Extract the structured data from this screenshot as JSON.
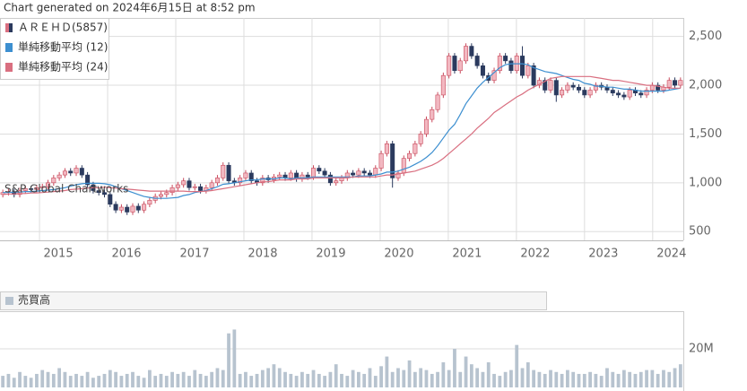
{
  "chart_data": [
    {
      "type": "candlestick",
      "title": "Chart generated on 2024年6月15日 at 8:52 pm",
      "annotation": "S&P Global Chartworks",
      "candles": {
        "name": "ＡＲＥＨＤ(5857)",
        "up_color": "#f2b8c1",
        "up_edge": "#c94a5c",
        "down_color": "#2b3a5e",
        "open": [
          880,
          900,
          910,
          880,
          920,
          940,
          930,
          950,
          960,
          1000,
          1050,
          1080,
          1120,
          1100,
          1150,
          1080,
          980,
          920,
          900,
          880,
          780,
          720,
          750,
          700,
          760,
          720,
          780,
          820,
          860,
          880,
          900,
          950,
          980,
          1020,
          950,
          960,
          920,
          950,
          1000,
          1050,
          1180,
          1020,
          1000,
          1050,
          1100,
          1020,
          1000,
          1050,
          1030,
          1060,
          1080,
          1050,
          1100,
          1040,
          1080,
          1060,
          1150,
          1120,
          1080,
          1000,
          1020,
          1050,
          1100,
          1080,
          1120,
          1100,
          1080,
          1150,
          1300,
          1400,
          1050,
          1100,
          1250,
          1300,
          1400,
          1500,
          1650,
          1750,
          1900,
          2100,
          2300,
          2150,
          2250,
          2400,
          2300,
          2200,
          2100,
          2050,
          2150,
          2300,
          2250,
          2150,
          2300,
          2100,
          2200,
          2000,
          2050,
          1950,
          2050,
          1900,
          1950,
          2000,
          1980,
          1950,
          1900,
          1950,
          2000,
          1980,
          1950,
          1920,
          1900,
          1880,
          1950,
          1920,
          1900,
          1950,
          2000,
          1950,
          1980,
          2050,
          2000
        ],
        "high": [
          930,
          940,
          940,
          950,
          970,
          970,
          980,
          990,
          1030,
          1080,
          1110,
          1150,
          1150,
          1180,
          1180,
          1110,
          1010,
          950,
          930,
          910,
          810,
          780,
          780,
          790,
          790,
          810,
          850,
          890,
          910,
          930,
          980,
          1010,
          1050,
          1050,
          990,
          990,
          980,
          1030,
          1080,
          1210,
          1210,
          1050,
          1080,
          1130,
          1130,
          1050,
          1080,
          1080,
          1090,
          1110,
          1110,
          1130,
          1130,
          1110,
          1110,
          1180,
          1180,
          1150,
          1110,
          1050,
          1080,
          1130,
          1130,
          1150,
          1150,
          1130,
          1180,
          1330,
          1430,
          1430,
          1130,
          1280,
          1330,
          1430,
          1530,
          1680,
          1780,
          1930,
          2130,
          2330,
          2330,
          2280,
          2430,
          2430,
          2330,
          2230,
          2130,
          2180,
          2330,
          2330,
          2280,
          2330,
          2400,
          2230,
          2230,
          2080,
          2080,
          2080,
          2080,
          1980,
          2030,
          2030,
          2010,
          1980,
          1980,
          2030,
          2030,
          2010,
          1980,
          1950,
          1930,
          1980,
          1980,
          1950,
          1980,
          2030,
          2030,
          2010,
          2080,
          2080,
          2080
        ],
        "low": [
          850,
          870,
          850,
          850,
          890,
          900,
          900,
          920,
          930,
          970,
          1020,
          1050,
          1070,
          1070,
          1050,
          950,
          890,
          870,
          850,
          750,
          690,
          690,
          670,
          670,
          690,
          690,
          750,
          790,
          830,
          850,
          870,
          920,
          950,
          920,
          920,
          890,
          890,
          920,
          970,
          1020,
          990,
          970,
          970,
          1020,
          990,
          970,
          970,
          1000,
          1000,
          1030,
          1020,
          1020,
          1010,
          1010,
          1030,
          1030,
          1090,
          1050,
          970,
          970,
          990,
          1020,
          1050,
          1050,
          1070,
          1050,
          1050,
          1120,
          1270,
          950,
          1020,
          1070,
          1220,
          1270,
          1370,
          1470,
          1620,
          1720,
          1870,
          2070,
          2120,
          2120,
          2220,
          2270,
          2170,
          2070,
          2020,
          2020,
          2120,
          2220,
          2120,
          2120,
          2070,
          2070,
          1970,
          1970,
          1920,
          1920,
          1830,
          1870,
          1920,
          1950,
          1920,
          1870,
          1870,
          1920,
          1950,
          1920,
          1890,
          1870,
          1850,
          1850,
          1890,
          1870,
          1870,
          1920,
          1920,
          1920,
          1950,
          1970,
          1970
        ],
        "close": [
          900,
          910,
          880,
          920,
          940,
          930,
          950,
          960,
          1000,
          1050,
          1080,
          1120,
          1100,
          1150,
          1080,
          980,
          920,
          900,
          880,
          780,
          720,
          750,
          700,
          760,
          720,
          780,
          820,
          860,
          880,
          900,
          950,
          980,
          1020,
          950,
          960,
          920,
          950,
          1000,
          1050,
          1180,
          1020,
          1000,
          1050,
          1100,
          1020,
          1000,
          1050,
          1030,
          1060,
          1080,
          1050,
          1100,
          1040,
          1080,
          1060,
          1150,
          1120,
          1080,
          1000,
          1020,
          1050,
          1100,
          1080,
          1120,
          1100,
          1080,
          1150,
          1300,
          1400,
          1050,
          1100,
          1250,
          1300,
          1400,
          1500,
          1650,
          1750,
          1900,
          2100,
          2300,
          2150,
          2250,
          2400,
          2300,
          2200,
          2100,
          2050,
          2150,
          2300,
          2250,
          2150,
          2300,
          2100,
          2200,
          2000,
          2050,
          1950,
          2050,
          1900,
          1950,
          2000,
          1980,
          1950,
          1900,
          1950,
          2000,
          1980,
          1950,
          1920,
          1900,
          1880,
          1950,
          1920,
          1900,
          1950,
          2000,
          1950,
          1980,
          2050,
          2000,
          2050
        ]
      },
      "series": [
        {
          "name": "単純移動平均 (12)",
          "color": "#3d8fd0",
          "values": [
            900,
            900,
            905,
            905,
            910,
            910,
            915,
            920,
            925,
            930,
            940,
            950,
            965,
            980,
            990,
            995,
            995,
            995,
            990,
            980,
            960,
            940,
            920,
            900,
            880,
            860,
            850,
            840,
            840,
            840,
            845,
            850,
            870,
            880,
            900,
            910,
            920,
            940,
            960,
            985,
            990,
            1000,
            1010,
            1020,
            1030,
            1030,
            1040,
            1040,
            1040,
            1050,
            1050,
            1040,
            1050,
            1050,
            1050,
            1060,
            1060,
            1060,
            1060,
            1060,
            1060,
            1060,
            1060,
            1070,
            1070,
            1070,
            1080,
            1090,
            1110,
            1110,
            1120,
            1140,
            1160,
            1190,
            1220,
            1260,
            1310,
            1380,
            1460,
            1540,
            1600,
            1700,
            1810,
            1890,
            1970,
            2030,
            2080,
            2130,
            2180,
            2210,
            2220,
            2220,
            2220,
            2210,
            2180,
            2160,
            2140,
            2130,
            2120,
            2100,
            2080,
            2060,
            2050,
            2020,
            2010,
            1990,
            1990,
            1980,
            1980,
            1970,
            1960,
            1960,
            1950,
            1940,
            1940,
            1940,
            1940,
            1940,
            1950,
            1960,
            1970
          ]
        },
        {
          "name": "単純移動平均 (24)",
          "color": "#d96f80",
          "values": [
            880,
            885,
            885,
            890,
            890,
            895,
            895,
            900,
            905,
            910,
            915,
            920,
            930,
            935,
            940,
            945,
            950,
            950,
            955,
            950,
            945,
            940,
            935,
            930,
            925,
            920,
            915,
            915,
            915,
            915,
            915,
            915,
            915,
            910,
            910,
            910,
            915,
            920,
            930,
            940,
            950,
            960,
            970,
            980,
            990,
            1000,
            1010,
            1010,
            1020,
            1030,
            1030,
            1030,
            1040,
            1040,
            1040,
            1050,
            1050,
            1050,
            1050,
            1050,
            1050,
            1050,
            1060,
            1060,
            1060,
            1060,
            1060,
            1070,
            1080,
            1080,
            1090,
            1100,
            1110,
            1120,
            1140,
            1160,
            1180,
            1210,
            1250,
            1300,
            1350,
            1400,
            1450,
            1500,
            1560,
            1610,
            1660,
            1720,
            1760,
            1800,
            1840,
            1880,
            1910,
            1950,
            1980,
            2010,
            2040,
            2070,
            2080,
            2090,
            2090,
            2090,
            2090,
            2090,
            2090,
            2080,
            2070,
            2060,
            2050,
            2050,
            2040,
            2030,
            2020,
            2010,
            2000,
            2000,
            1990,
            1980,
            1970,
            1970,
            1970
          ]
        }
      ],
      "xlim": [
        2014.42,
        2024.45
      ],
      "xticks": [
        2015,
        2016,
        2017,
        2018,
        2019,
        2020,
        2021,
        2022,
        2023,
        2024
      ],
      "ylim": [
        410,
        2690
      ],
      "yticks": [
        {
          "value": 500,
          "label": "500"
        },
        {
          "value": 1000,
          "label": "1,000"
        },
        {
          "value": 1500,
          "label": "1,500"
        },
        {
          "value": 2000,
          "label": "2,000"
        },
        {
          "value": 2500,
          "label": "2,500"
        }
      ],
      "grid": true
    },
    {
      "type": "bar",
      "series": [
        {
          "name": "売買高",
          "color": "#b7c3cf",
          "values": [
            6000000,
            7000000,
            5000000,
            8000000,
            6000000,
            5000000,
            7000000,
            9000000,
            8000000,
            7000000,
            10000000,
            8000000,
            6000000,
            7000000,
            6000000,
            8000000,
            5000000,
            6000000,
            7000000,
            9000000,
            8000000,
            6000000,
            7000000,
            8000000,
            6000000,
            5000000,
            9000000,
            6000000,
            7000000,
            6000000,
            8000000,
            7000000,
            8000000,
            6000000,
            9000000,
            7000000,
            6000000,
            8000000,
            10000000,
            9000000,
            28000000,
            30000000,
            7000000,
            8000000,
            6000000,
            7000000,
            9000000,
            10000000,
            12000000,
            10000000,
            8000000,
            7000000,
            6000000,
            8000000,
            7000000,
            9000000,
            7000000,
            6000000,
            8000000,
            12000000,
            7000000,
            6000000,
            9000000,
            8000000,
            7000000,
            10000000,
            6000000,
            11000000,
            16000000,
            8000000,
            10000000,
            9000000,
            14000000,
            8000000,
            10000000,
            9000000,
            7000000,
            8000000,
            13000000,
            9000000,
            20000000,
            8000000,
            16000000,
            12000000,
            10000000,
            8000000,
            13000000,
            7000000,
            6000000,
            8000000,
            9000000,
            22000000,
            10000000,
            13000000,
            9000000,
            8000000,
            7000000,
            9000000,
            8000000,
            7000000,
            9000000,
            8000000,
            7000000,
            7000000,
            8000000,
            7000000,
            6000000,
            10000000,
            8000000,
            7000000,
            9000000,
            8000000,
            7000000,
            8000000,
            9000000,
            9000000,
            7000000,
            9000000,
            8000000,
            10000000,
            12000000
          ]
        }
      ],
      "xlim": [
        2014.42,
        2024.45
      ],
      "ylim": [
        0,
        39500000
      ],
      "yticks": [
        {
          "value": 20000000,
          "label": "20M"
        }
      ],
      "grid": true
    }
  ]
}
